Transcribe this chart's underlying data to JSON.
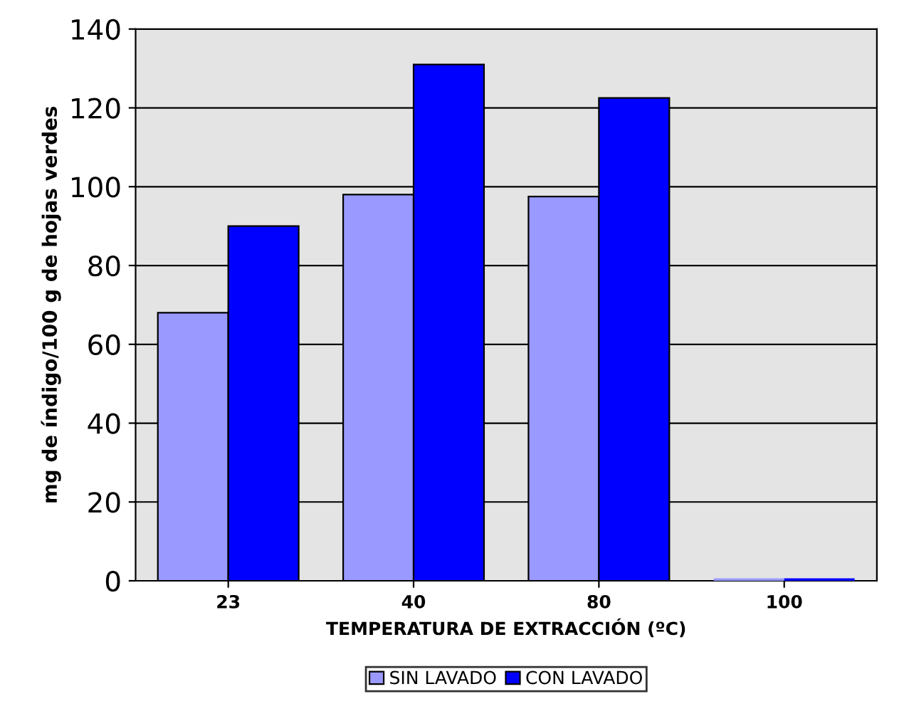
{
  "chart_data": {
    "type": "bar",
    "xlabel": "TEMPERATURA DE EXTRACCIÓN (ºC)",
    "ylabel": "mg de índigo/100 g de hojas verdes",
    "categories": [
      "23",
      "40",
      "80",
      "100"
    ],
    "series": [
      {
        "name": "SIN LAVADO",
        "color": "#9999ff",
        "values": [
          68,
          98,
          97.5,
          0
        ]
      },
      {
        "name": "CON LAVADO",
        "color": "#0000ff",
        "values": [
          90,
          131,
          122.5,
          0
        ]
      }
    ],
    "ylim": [
      0,
      140
    ],
    "yticks": [
      0,
      20,
      40,
      60,
      80,
      100,
      120,
      140
    ],
    "grid": "y",
    "legend": "bottom"
  }
}
